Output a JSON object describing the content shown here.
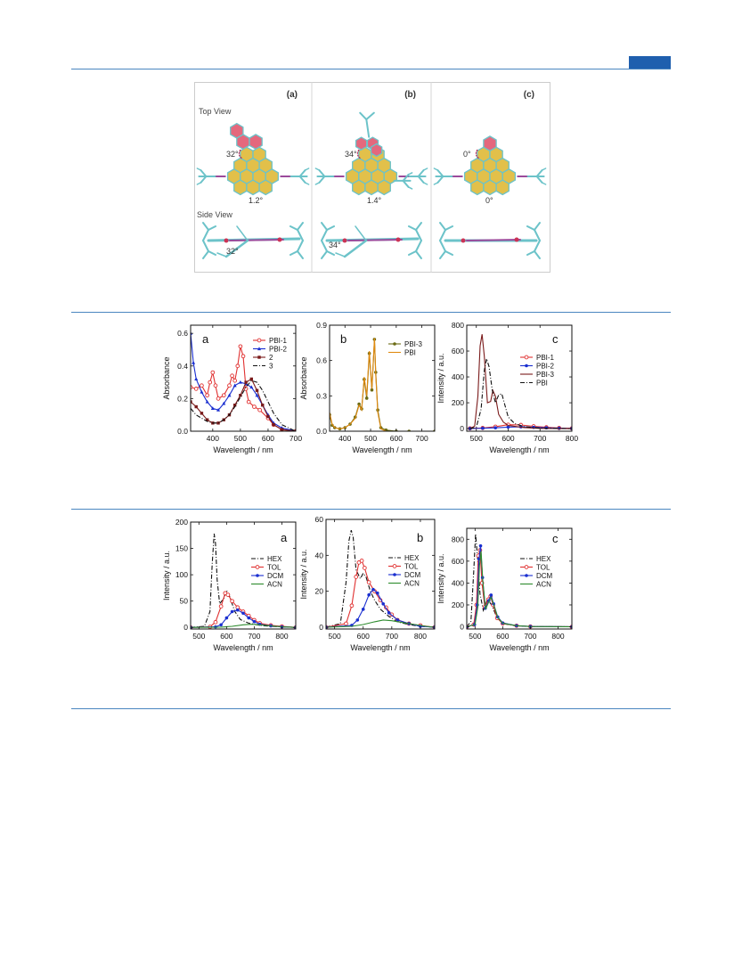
{
  "molecule_figure": {
    "panels": [
      {
        "label": "(a)",
        "top_angle": "32°",
        "bottom_angle": "1.2°",
        "side_angle": "32°"
      },
      {
        "label": "(b)",
        "top_angle": "34°",
        "bottom_angle": "1.4°",
        "side_angle": "34°"
      },
      {
        "label": "(c)",
        "top_angle": "0°",
        "bottom_angle": "0°",
        "side_angle": ""
      }
    ],
    "top_view_label": "Top View",
    "side_view_label": "Side View",
    "colors": {
      "pink": "#e4687d",
      "yellow": "#e2c04a",
      "stick": "#6cc3c9"
    }
  },
  "chart_data": [
    {
      "type": "line",
      "panel": "a",
      "xlabel": "Wavelength / nm",
      "ylabel": "Absorbance",
      "xlim": [
        320,
        700
      ],
      "ylim": [
        0,
        0.65
      ],
      "xticks": [
        400,
        500,
        600,
        700
      ],
      "yticks": [
        0.0,
        0.2,
        0.4,
        0.6
      ],
      "ytick_labels": [
        "0.0",
        "0.2",
        "0.4",
        "0.6"
      ],
      "legend": "top-right",
      "series": [
        {
          "name": "PBI-1",
          "color": "#e03030",
          "dash": "",
          "marker": "open-circle",
          "x": [
            320,
            340,
            360,
            380,
            390,
            400,
            410,
            420,
            440,
            460,
            470,
            480,
            490,
            500,
            510,
            520,
            530,
            550,
            570,
            600,
            620,
            650,
            700
          ],
          "y": [
            0.27,
            0.26,
            0.28,
            0.22,
            0.3,
            0.36,
            0.28,
            0.2,
            0.22,
            0.28,
            0.34,
            0.31,
            0.4,
            0.52,
            0.46,
            0.26,
            0.18,
            0.15,
            0.13,
            0.08,
            0.04,
            0.01,
            0.0
          ]
        },
        {
          "name": "PBI-2",
          "color": "#1a2fd0",
          "dash": "",
          "marker": "triangle",
          "x": [
            320,
            330,
            340,
            360,
            380,
            400,
            420,
            440,
            460,
            480,
            500,
            520,
            540,
            560,
            580,
            600,
            620,
            650,
            700
          ],
          "y": [
            0.6,
            0.42,
            0.32,
            0.24,
            0.18,
            0.14,
            0.13,
            0.17,
            0.22,
            0.28,
            0.3,
            0.29,
            0.27,
            0.22,
            0.16,
            0.1,
            0.05,
            0.02,
            0.0
          ]
        },
        {
          "name": "2",
          "color": "#7a1a1a",
          "dash": "",
          "marker": "square",
          "x": [
            320,
            340,
            360,
            380,
            400,
            420,
            440,
            460,
            480,
            500,
            520,
            540,
            560,
            580,
            600,
            620,
            650,
            700
          ],
          "y": [
            0.18,
            0.15,
            0.11,
            0.07,
            0.05,
            0.05,
            0.07,
            0.1,
            0.16,
            0.22,
            0.3,
            0.32,
            0.25,
            0.16,
            0.09,
            0.04,
            0.01,
            0.0
          ]
        },
        {
          "name": "3",
          "color": "#111111",
          "dash": "5,2,1,2",
          "marker": "",
          "x": [
            320,
            340,
            360,
            380,
            400,
            420,
            440,
            460,
            480,
            500,
            520,
            540,
            560,
            580,
            600,
            620,
            650,
            700
          ],
          "y": [
            0.14,
            0.1,
            0.08,
            0.06,
            0.05,
            0.05,
            0.07,
            0.1,
            0.15,
            0.21,
            0.27,
            0.31,
            0.3,
            0.25,
            0.18,
            0.11,
            0.04,
            0.0
          ]
        }
      ]
    },
    {
      "type": "line",
      "panel": "b",
      "xlabel": "Wavelength / nm",
      "ylabel": "Absorbance",
      "xlim": [
        340,
        750
      ],
      "ylim": [
        0,
        0.9
      ],
      "xticks": [
        400,
        500,
        600,
        700
      ],
      "yticks": [
        0.0,
        0.3,
        0.6,
        0.9
      ],
      "ytick_labels": [
        "0.0",
        "0.3",
        "0.6",
        "0.9"
      ],
      "legend": "top-right",
      "series": [
        {
          "name": "PBI-3",
          "color": "#6b6b14",
          "dash": "",
          "marker": "dot",
          "x": [
            340,
            350,
            360,
            380,
            400,
            420,
            440,
            455,
            465,
            475,
            485,
            495,
            505,
            515,
            520,
            528,
            540,
            560,
            600,
            650,
            750
          ],
          "y": [
            0.14,
            0.05,
            0.03,
            0.02,
            0.03,
            0.06,
            0.12,
            0.23,
            0.19,
            0.44,
            0.28,
            0.66,
            0.35,
            0.78,
            0.5,
            0.18,
            0.03,
            0.01,
            0.0,
            0.0,
            0.0
          ]
        },
        {
          "name": "PBI",
          "color": "#e08a10",
          "dash": "",
          "marker": "",
          "x": [
            340,
            350,
            360,
            380,
            400,
            420,
            440,
            455,
            465,
            475,
            485,
            495,
            505,
            515,
            520,
            528,
            540,
            560,
            600,
            650,
            750
          ],
          "y": [
            0.16,
            0.06,
            0.03,
            0.02,
            0.03,
            0.06,
            0.11,
            0.22,
            0.18,
            0.46,
            0.3,
            0.68,
            0.36,
            0.79,
            0.48,
            0.16,
            0.02,
            0.0,
            0.0,
            0.0,
            0.0
          ]
        }
      ]
    },
    {
      "type": "line",
      "panel": "c",
      "xlabel": "Wavelength / nm",
      "ylabel": "Intensity / a.u.",
      "xlim": [
        470,
        800
      ],
      "ylim": [
        -20,
        800
      ],
      "xticks": [
        500,
        600,
        700,
        800
      ],
      "yticks": [
        0,
        200,
        400,
        600,
        800
      ],
      "ytick_labels": [
        "0",
        "200",
        "400",
        "600",
        "800"
      ],
      "legend": "center-right",
      "series": [
        {
          "name": "PBI-1",
          "color": "#e03030",
          "dash": "",
          "marker": "open-circle",
          "x": [
            480,
            520,
            560,
            600,
            640,
            680,
            720,
            760,
            800
          ],
          "y": [
            2,
            5,
            15,
            30,
            28,
            18,
            10,
            5,
            2
          ]
        },
        {
          "name": "PBI-2",
          "color": "#1a2fd0",
          "dash": "",
          "marker": "dot",
          "x": [
            480,
            520,
            560,
            600,
            640,
            680,
            720,
            760,
            800
          ],
          "y": [
            1,
            3,
            6,
            12,
            14,
            10,
            6,
            3,
            1
          ]
        },
        {
          "name": "PBI-3",
          "color": "#7a1a1a",
          "dash": "",
          "marker": "",
          "x": [
            480,
            495,
            505,
            512,
            518,
            525,
            535,
            545,
            552,
            560,
            570,
            585,
            600,
            650,
            700,
            800
          ],
          "y": [
            0,
            20,
            250,
            640,
            730,
            560,
            200,
            210,
            295,
            250,
            110,
            50,
            25,
            8,
            2,
            0
          ]
        },
        {
          "name": "PBI",
          "color": "#111111",
          "dash": "5,2,1,2",
          "marker": "",
          "x": [
            480,
            500,
            515,
            525,
            532,
            540,
            550,
            560,
            570,
            580,
            590,
            600,
            620,
            650,
            700,
            800
          ],
          "y": [
            0,
            10,
            150,
            450,
            540,
            480,
            300,
            200,
            260,
            270,
            180,
            90,
            40,
            15,
            4,
            0
          ]
        }
      ]
    },
    {
      "type": "line",
      "panel": "a",
      "xlabel": "Wavelength / nm",
      "ylabel": "Intensity / a.u.",
      "xlim": [
        470,
        850
      ],
      "ylim": [
        -3,
        200
      ],
      "xticks": [
        500,
        600,
        700,
        800
      ],
      "yticks": [
        0,
        50,
        100,
        150,
        200
      ],
      "ytick_labels": [
        "0",
        "50",
        "100",
        "150",
        "200"
      ],
      "legend": "right",
      "series": [
        {
          "name": "HEX",
          "color": "#111111",
          "dash": "5,2,1,2",
          "marker": "",
          "x": [
            470,
            520,
            540,
            548,
            555,
            560,
            566,
            575,
            590,
            600,
            610,
            630,
            650,
            680,
            720,
            760,
            800,
            850
          ],
          "y": [
            0,
            2,
            30,
            120,
            178,
            160,
            90,
            45,
            55,
            70,
            60,
            30,
            15,
            8,
            4,
            2,
            1,
            0
          ]
        },
        {
          "name": "TOL",
          "color": "#e03030",
          "dash": "",
          "marker": "open-circle",
          "x": [
            470,
            540,
            560,
            580,
            595,
            605,
            620,
            640,
            660,
            680,
            700,
            720,
            760,
            800,
            850
          ],
          "y": [
            0,
            1,
            10,
            40,
            65,
            62,
            50,
            38,
            30,
            22,
            14,
            8,
            4,
            2,
            0
          ]
        },
        {
          "name": "DCM",
          "color": "#1a2fd0",
          "dash": "",
          "marker": "dot",
          "x": [
            470,
            560,
            580,
            600,
            620,
            640,
            660,
            680,
            700,
            720,
            760,
            800,
            850
          ],
          "y": [
            0,
            1,
            5,
            18,
            30,
            33,
            27,
            18,
            11,
            6,
            3,
            1,
            0
          ]
        },
        {
          "name": "ACN",
          "color": "#2e8b2e",
          "dash": "",
          "marker": "",
          "x": [
            470,
            580,
            620,
            660,
            690,
            720,
            760,
            800,
            850
          ],
          "y": [
            0,
            0.5,
            2,
            5,
            6,
            5,
            3,
            1,
            0
          ]
        }
      ]
    },
    {
      "type": "line",
      "panel": "b",
      "xlabel": "Wavelength / nm",
      "ylabel": "Intensity / a.u.",
      "xlim": [
        470,
        850
      ],
      "ylim": [
        -1,
        60
      ],
      "xticks": [
        500,
        600,
        700,
        800
      ],
      "yticks": [
        0,
        20,
        40,
        60
      ],
      "ytick_labels": [
        "0",
        "20",
        "40",
        "60"
      ],
      "legend": "right",
      "series": [
        {
          "name": "HEX",
          "color": "#111111",
          "dash": "5,2,1,2",
          "marker": "",
          "x": [
            470,
            520,
            540,
            550,
            558,
            565,
            575,
            590,
            600,
            610,
            625,
            640,
            660,
            690,
            720,
            760,
            800,
            850
          ],
          "y": [
            0,
            2,
            25,
            48,
            54,
            50,
            32,
            27,
            30,
            28,
            20,
            15,
            10,
            6,
            3,
            1.5,
            0.5,
            0
          ]
        },
        {
          "name": "TOL",
          "color": "#e03030",
          "dash": "",
          "marker": "open-circle",
          "x": [
            470,
            540,
            560,
            575,
            585,
            595,
            605,
            620,
            640,
            660,
            680,
            700,
            720,
            760,
            800,
            850
          ],
          "y": [
            0,
            2,
            12,
            28,
            36,
            37,
            33,
            25,
            20,
            15,
            11,
            7,
            4,
            2,
            1,
            0
          ]
        },
        {
          "name": "DCM",
          "color": "#1a2fd0",
          "dash": "",
          "marker": "dot",
          "x": [
            470,
            560,
            580,
            600,
            620,
            635,
            650,
            670,
            690,
            720,
            760,
            800,
            850
          ],
          "y": [
            0,
            1,
            4,
            10,
            18,
            21,
            19,
            13,
            8,
            4,
            2,
            0.5,
            0
          ]
        },
        {
          "name": "ACN",
          "color": "#2e8b2e",
          "dash": "",
          "marker": "",
          "x": [
            470,
            560,
            600,
            640,
            670,
            700,
            740,
            780,
            820,
            850
          ],
          "y": [
            0,
            0.5,
            1.5,
            3,
            4,
            3.6,
            2.5,
            1.5,
            0.5,
            0
          ]
        }
      ]
    },
    {
      "type": "line",
      "panel": "c",
      "xlabel": "Wavelength / nm",
      "ylabel": "Intensity / a.u.",
      "xlim": [
        470,
        850
      ],
      "ylim": [
        -20,
        900
      ],
      "xticks": [
        500,
        600,
        700,
        800
      ],
      "yticks": [
        0,
        200,
        400,
        600,
        800
      ],
      "ytick_labels": [
        "0",
        "200",
        "400",
        "600",
        "800"
      ],
      "legend": "right",
      "series": [
        {
          "name": "HEX",
          "color": "#111111",
          "dash": "5,2,1,2",
          "marker": "",
          "x": [
            470,
            485,
            495,
            502,
            510,
            518,
            530,
            545,
            560,
            580,
            600,
            650,
            700,
            850
          ],
          "y": [
            0,
            50,
            500,
            850,
            600,
            300,
            150,
            250,
            200,
            80,
            30,
            8,
            2,
            0
          ]
        },
        {
          "name": "TOL",
          "color": "#e03030",
          "dash": "",
          "marker": "open-circle",
          "x": [
            470,
            495,
            505,
            512,
            518,
            525,
            535,
            548,
            556,
            565,
            580,
            600,
            650,
            700,
            850
          ],
          "y": [
            0,
            20,
            200,
            650,
            700,
            400,
            180,
            250,
            280,
            200,
            80,
            30,
            10,
            3,
            0
          ]
        },
        {
          "name": "DCM",
          "color": "#1a2fd0",
          "dash": "",
          "marker": "dot",
          "x": [
            470,
            498,
            508,
            514,
            520,
            527,
            537,
            550,
            558,
            567,
            582,
            600,
            650,
            700,
            850
          ],
          "y": [
            0,
            20,
            200,
            620,
            740,
            450,
            170,
            240,
            290,
            210,
            90,
            35,
            10,
            3,
            0
          ]
        },
        {
          "name": "ACN",
          "color": "#2e8b2e",
          "dash": "",
          "marker": "",
          "x": [
            470,
            500,
            510,
            516,
            522,
            528,
            538,
            550,
            558,
            568,
            582,
            600,
            650,
            700,
            850
          ],
          "y": [
            0,
            20,
            180,
            560,
            690,
            420,
            160,
            230,
            270,
            200,
            85,
            32,
            10,
            3,
            0
          ]
        }
      ]
    }
  ]
}
